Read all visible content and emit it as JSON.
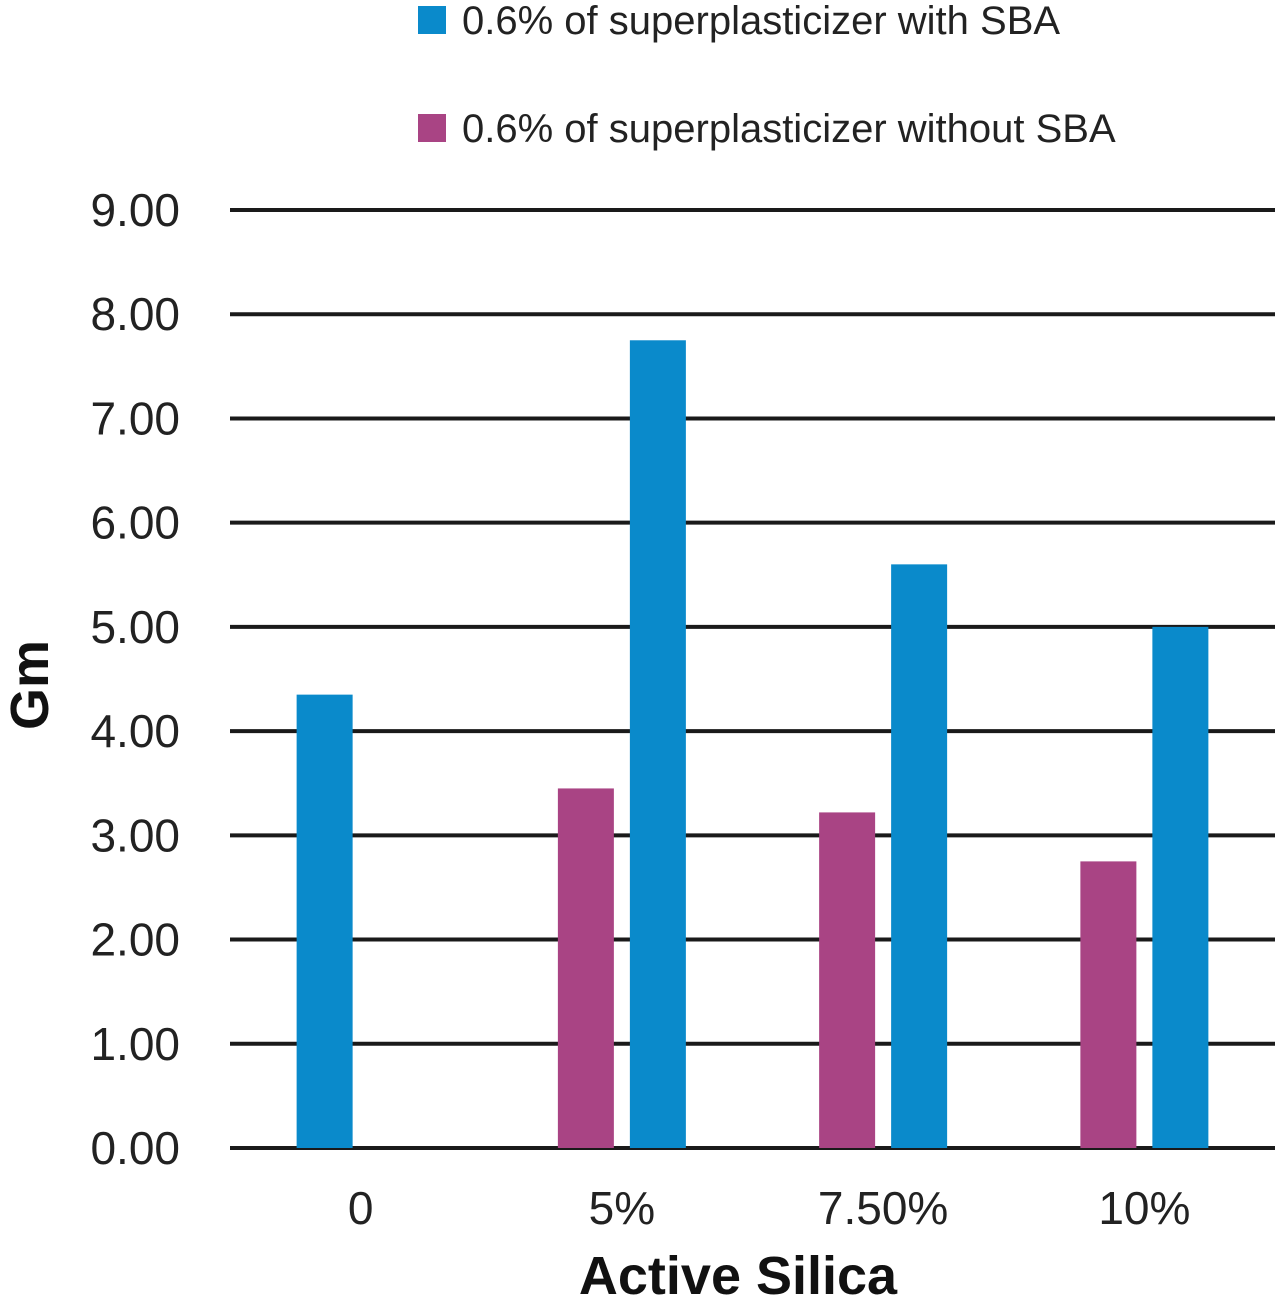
{
  "chart_data": {
    "type": "bar",
    "xlabel": "Active Silica",
    "ylabel": "Gm",
    "categories": [
      "0",
      "5%",
      "7.50%",
      "10%"
    ],
    "ylim": [
      0,
      9
    ],
    "yticks": [
      "0.00",
      "1.00",
      "2.00",
      "3.00",
      "4.00",
      "5.00",
      "6.00",
      "7.00",
      "8.00",
      "9.00"
    ],
    "grid": true,
    "legend_position": "top-right",
    "series": [
      {
        "name": "0.6% of superplasticizer without SBA",
        "color": "#a94484",
        "values": [
          null,
          3.45,
          3.22,
          2.75
        ]
      },
      {
        "name": "0.6% of superplasticizer with SBA",
        "color": "#0a8acb",
        "values": [
          4.35,
          7.75,
          5.6,
          5.0
        ]
      }
    ],
    "legend_order": [
      1,
      0
    ]
  }
}
